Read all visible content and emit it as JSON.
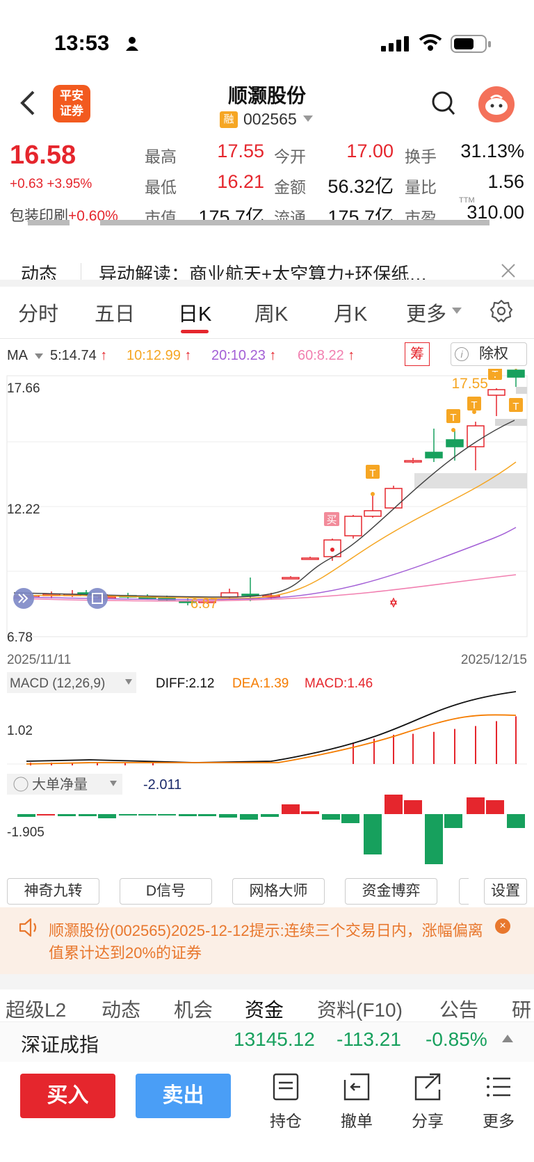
{
  "status": {
    "time": "13:53"
  },
  "header": {
    "logo_text": [
      "平安",
      "证券"
    ],
    "name": "顺灏股份",
    "rong": "融",
    "code": "002565"
  },
  "quote": {
    "price": "16.58",
    "change": "+0.63 +3.95%",
    "sector_name": "包装印刷",
    "sector_change": "+0.60%",
    "cells": [
      {
        "label": "最高",
        "value": "17.55",
        "color": "red"
      },
      {
        "label": "今开",
        "value": "17.00",
        "color": "red"
      },
      {
        "label": "换手",
        "value": "31.13%",
        "color": "dark"
      },
      {
        "label": "最低",
        "value": "16.21",
        "color": "red"
      },
      {
        "label": "金额",
        "value": "56.32亿",
        "color": "dark"
      },
      {
        "label": "量比",
        "value": "1.56",
        "color": "dark"
      },
      {
        "label": "市值",
        "value": "175.7亿",
        "color": "dark"
      },
      {
        "label": "流通",
        "value": "175.7亿",
        "color": "dark"
      },
      {
        "label": "市盈",
        "value": "310.00",
        "color": "dark"
      }
    ],
    "ttm": "TTM"
  },
  "news": {
    "tag": "动态",
    "text": "异动解读：商业航天+太空算力+环保纸…"
  },
  "tabs": [
    "分时",
    "五日",
    "日K",
    "周K",
    "月K",
    "更多"
  ],
  "active_tab": "日K",
  "ma": {
    "label": "MA",
    "items": [
      {
        "text": "5:14.74",
        "color": "#333333"
      },
      {
        "text": "10:12.99",
        "color": "#f5a623"
      },
      {
        "text": "20:10.23",
        "color": "#a35fd6"
      },
      {
        "text": "60:8.22",
        "color": "#f17fb0"
      }
    ],
    "chou": "筹",
    "chuquan": "除权"
  },
  "chart_data": [
    {
      "type": "candlestick",
      "y_ticks": [
        "17.66",
        "12.22",
        "6.78"
      ],
      "x_start": "2025/11/11",
      "x_end": "2025/12/15",
      "high_label": "17.55",
      "low_label": "6.87",
      "buy_label": "买",
      "t_label": "T",
      "ylim": [
        6.78,
        17.66
      ]
    },
    {
      "type": "line",
      "title": "MACD (12,26,9)",
      "diff": "DIFF:2.12",
      "dea": "DEA:1.39",
      "macd": "MACD:1.46",
      "y_tick": "1.02"
    },
    {
      "type": "bar",
      "title": "大单净量",
      "value": "-2.011",
      "y_tick": "-1.905"
    }
  ],
  "indicators": [
    "神奇九转",
    "D信号",
    "网格大师",
    "资金博弈",
    "设置"
  ],
  "alert": {
    "text": "顺灏股份(002565)2025-12-12提示:连续三个交易日内，涨幅偏离值累计达到20%的证券"
  },
  "bottom_tabs": [
    "超级L2",
    "动态",
    "机会",
    "资金",
    "资料(F10)",
    "公告",
    "研"
  ],
  "active_bottom_tab": "资金",
  "index": {
    "name": "深证成指",
    "value": "13145.12",
    "change": "-113.21",
    "pct": "-0.85%"
  },
  "actions": {
    "buy": "买入",
    "sell": "卖出"
  },
  "nav": [
    "持仓",
    "撤单",
    "分享",
    "更多"
  ]
}
